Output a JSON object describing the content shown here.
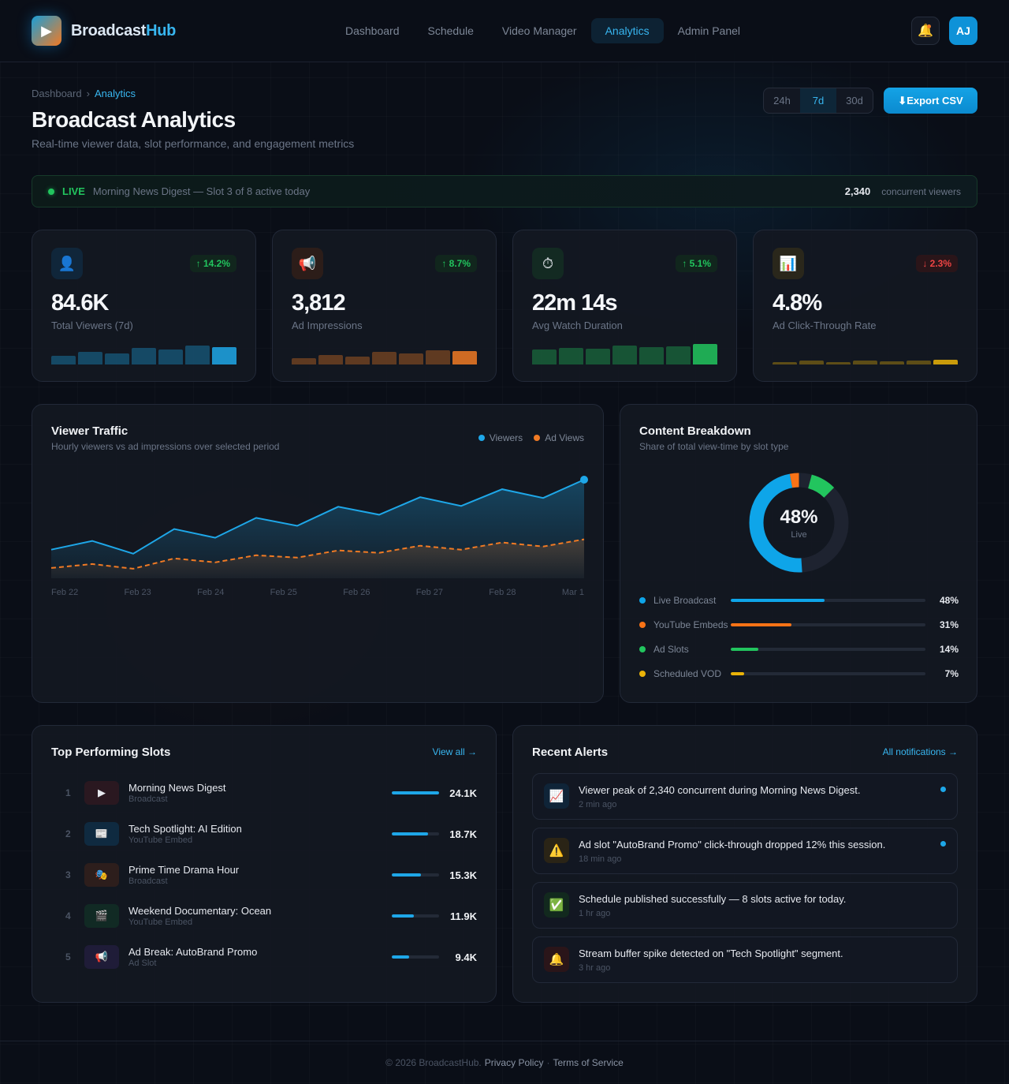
{
  "app": {
    "name_part1": "Broadcast",
    "name_part2": "Hub",
    "logo_icon": "play-icon"
  },
  "nav": {
    "items": [
      {
        "label": "Dashboard",
        "active": false
      },
      {
        "label": "Schedule",
        "active": false
      },
      {
        "label": "Video Manager",
        "active": false
      },
      {
        "label": "Analytics",
        "active": true
      },
      {
        "label": "Admin Panel",
        "active": false
      }
    ],
    "bell_icon": "🔔",
    "avatar_initials": "AJ"
  },
  "breadcrumb": {
    "items": [
      "Dashboard",
      "Analytics"
    ],
    "separator": "›"
  },
  "page": {
    "title": "Broadcast Analytics",
    "subtitle": "Real-time viewer data, slot performance, and engagement metrics"
  },
  "range": {
    "options": [
      "24h",
      "7d",
      "30d"
    ],
    "selected": "7d"
  },
  "export_label": "⬇Export CSV",
  "live": {
    "tag": "LIVE",
    "text": "Morning News Digest — Slot 3 of 8 active today",
    "count": "2,340",
    "count_label": "concurrent viewers"
  },
  "stats": [
    {
      "icon": "👤",
      "icon_name": "user-icon",
      "badge": "↑ 14.2%",
      "trend": "up",
      "value": "84.6K",
      "label": "Total Viewers (7d)",
      "color": "#1ea7e8",
      "bars": [
        11,
        16,
        14,
        21,
        19,
        24,
        22
      ]
    },
    {
      "icon": "📢",
      "icon_name": "megaphone-icon",
      "badge": "↑ 8.7%",
      "trend": "up",
      "value": "3,812",
      "label": "Ad Impressions",
      "color": "#f07a24",
      "bars": [
        8,
        12,
        10,
        16,
        14,
        18,
        17
      ]
    },
    {
      "icon": "⏱",
      "icon_name": "stopwatch-icon",
      "badge": "↑ 5.1%",
      "trend": "up",
      "value": "22m 14s",
      "label": "Avg Watch Duration",
      "color": "#22c55e",
      "bars": [
        19,
        21,
        20,
        24,
        22,
        23,
        26
      ]
    },
    {
      "icon": "📊",
      "icon_name": "bar-chart-icon",
      "badge": "↓ 2.3%",
      "trend": "down",
      "value": "4.8%",
      "label": "Ad Click-Through Rate",
      "color": "#eab308",
      "bars": [
        3,
        5,
        3,
        5,
        4,
        5,
        6
      ]
    }
  ],
  "traffic": {
    "title": "Viewer Traffic",
    "subtitle": "Hourly viewers vs ad impressions over selected period",
    "legend": [
      {
        "label": "Viewers",
        "color": "#1ea7e8"
      },
      {
        "label": "Ad Views",
        "color": "#f07a24"
      }
    ]
  },
  "breakdown": {
    "title": "Content Breakdown",
    "subtitle": "Share of total view-time by slot type",
    "center_value": "48%",
    "center_label": "Live",
    "items": [
      {
        "label": "Live Broadcast",
        "pct": 48,
        "pct_label": "48%",
        "color": "#0ea5e9"
      },
      {
        "label": "YouTube Embeds",
        "pct": 31,
        "pct_label": "31%",
        "color": "#f97316"
      },
      {
        "label": "Ad Slots",
        "pct": 14,
        "pct_label": "14%",
        "color": "#22c55e"
      },
      {
        "label": "Scheduled VOD",
        "pct": 7,
        "pct_label": "7%",
        "color": "#eab308"
      }
    ]
  },
  "chart_data": [
    {
      "type": "line",
      "title": "Viewer Traffic",
      "subtitle": "Hourly viewers vs ad impressions over selected period",
      "x": [
        "Feb 22",
        "Feb 23",
        "Feb 24",
        "Feb 25",
        "Feb 26",
        "Feb 27",
        "Feb 28",
        "Mar 1"
      ],
      "xlabel": "",
      "ylabel": "",
      "grid": false,
      "legend_position": "top-right",
      "point_count": 14,
      "series": [
        {
          "name": "Viewers",
          "style": "solid-area",
          "color": "#1ea7e8",
          "values": [
            36,
            47,
            31,
            62,
            51,
            76,
            66,
            90,
            80,
            102,
            91,
            112,
            101,
            124
          ]
        },
        {
          "name": "Ad Views",
          "style": "dashed-area",
          "color": "#f07a24",
          "values": [
            13,
            18,
            12,
            25,
            20,
            29,
            26,
            35,
            32,
            41,
            36,
            45,
            40,
            49
          ]
        }
      ]
    },
    {
      "type": "pie",
      "title": "Content Breakdown",
      "categories": [
        "Live Broadcast",
        "YouTube Embeds",
        "Ad Slots",
        "Scheduled VOD"
      ],
      "values": [
        48,
        31,
        14,
        7
      ],
      "center_label": "48% Live"
    }
  ],
  "slots": {
    "title": "Top Performing Slots",
    "link": "View all →",
    "items": [
      {
        "rank": "1",
        "icon": "▶",
        "icon_name": "play-icon",
        "bg": "#2a1820",
        "name": "Morning News Digest",
        "type": "Broadcast",
        "pct": 100,
        "value": "24.1K"
      },
      {
        "rank": "2",
        "icon": "📰",
        "icon_name": "newspaper-icon",
        "bg": "#0f2a40",
        "name": "Tech Spotlight: AI Edition",
        "type": "YouTube Embed",
        "pct": 76,
        "value": "18.7K"
      },
      {
        "rank": "3",
        "icon": "🎭",
        "icon_name": "theater-masks-icon",
        "bg": "#2d1e1c",
        "name": "Prime Time Drama Hour",
        "type": "Broadcast",
        "pct": 62,
        "value": "15.3K"
      },
      {
        "rank": "4",
        "icon": "🎬",
        "icon_name": "clapper-icon",
        "bg": "#112a24",
        "name": "Weekend Documentary: Ocean",
        "type": "YouTube Embed",
        "pct": 47,
        "value": "11.9K"
      },
      {
        "rank": "5",
        "icon": "📢",
        "icon_name": "megaphone-icon",
        "bg": "#1f1c38",
        "name": "Ad Break: AutoBrand Promo",
        "type": "Ad Slot",
        "pct": 37,
        "value": "9.4K"
      }
    ]
  },
  "alerts": {
    "title": "Recent Alerts",
    "link": "All notifications →",
    "items": [
      {
        "icon": "📈",
        "icon_name": "chart-up-icon",
        "bg": "#0f2438",
        "text": "Viewer peak of 2,340 concurrent during Morning News Digest.",
        "time": "2 min ago",
        "unread": true
      },
      {
        "icon": "⚠️",
        "icon_name": "warning-icon",
        "bg": "#2a2416",
        "text": "Ad slot \"AutoBrand Promo\" click-through dropped 12% this session.",
        "time": "18 min ago",
        "unread": true
      },
      {
        "icon": "✅",
        "icon_name": "check-icon",
        "bg": "#12291e",
        "text": "Schedule published successfully — 8 slots active for today.",
        "time": "1 hr ago",
        "unread": false
      },
      {
        "icon": "🔔",
        "icon_name": "bell-icon",
        "bg": "#2a1519",
        "text": "Stream buffer spike detected on \"Tech Spotlight\" segment.",
        "time": "3 hr ago",
        "unread": false
      }
    ]
  },
  "footer": {
    "copyright": "© 2026 BroadcastHub.",
    "privacy": "Privacy Policy",
    "dot": "·",
    "terms": "Terms of Service"
  }
}
